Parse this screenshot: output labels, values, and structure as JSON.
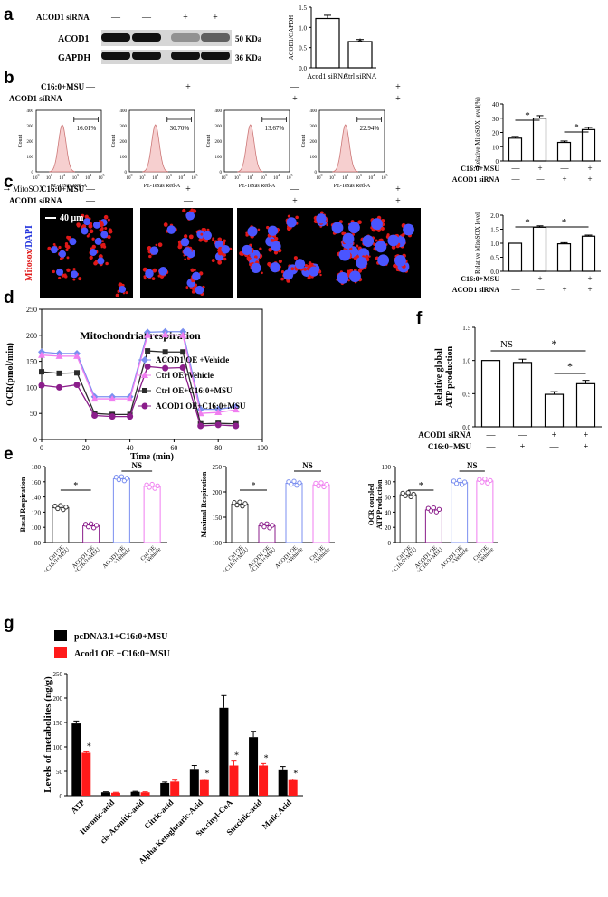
{
  "panels": {
    "a": "a",
    "b": "b",
    "c": "c",
    "d": "d",
    "e": "e",
    "f": "f",
    "g": "g"
  },
  "blot": {
    "siRNA_label": "ACOD1 siRNA",
    "siRNA_signs": [
      "—",
      "—",
      "+",
      "+"
    ],
    "rows": [
      {
        "name": "ACOD1",
        "size": "50 KDa"
      },
      {
        "name": "GAPDH",
        "size": "36 KDa"
      }
    ]
  },
  "treat_labels": {
    "c16": "C16:0+MSU",
    "acod1": "ACOD1 siRNA"
  },
  "signs4": {
    "c16": [
      "—",
      "+",
      "—",
      "+"
    ],
    "acod1": [
      "—",
      "—",
      "+",
      "+"
    ]
  },
  "flow": {
    "pcts": [
      "16.01%",
      "30.70%",
      "13.67%",
      "22.94%"
    ],
    "ylabel": "Count",
    "xlabel": "PE-Texas Red-A",
    "channel": "MitoSOX",
    "yticks": [
      "0",
      "100",
      "200",
      "300",
      "400"
    ],
    "xticks": [
      "0",
      "1",
      "2",
      "3",
      "4",
      "5"
    ]
  },
  "micro": {
    "scale": "40 μm",
    "stain1": "Mitosox",
    "stain2": "DAPI"
  },
  "chart_data": [
    {
      "id": "a",
      "type": "bar",
      "categories": [
        "Acod1 siRNA",
        "Ctrl  siRNA"
      ],
      "values": [
        1.22,
        0.65
      ],
      "errors": [
        0.08,
        0.05
      ],
      "ylabel": "ACOD1/GAPDH",
      "ylim": [
        0,
        1.5
      ],
      "yticks": [
        "0.0",
        "0.5",
        "1.0",
        "1.5"
      ],
      "annotations": [
        "*"
      ]
    },
    {
      "id": "b",
      "type": "bar",
      "ylabel": "Relative MitoSOX level(%)",
      "values": [
        16,
        30,
        13,
        22
      ],
      "errors": [
        1.2,
        1.8,
        1.0,
        1.5
      ],
      "ylim": [
        0,
        40
      ],
      "yticks": [
        "0",
        "10",
        "20",
        "30",
        "40"
      ],
      "annotations": [
        "*",
        "*"
      ]
    },
    {
      "id": "c",
      "type": "bar",
      "ylabel": "Relative MitoSOX level",
      "values": [
        1.0,
        1.57,
        0.98,
        1.25
      ],
      "errors": [
        0,
        0.05,
        0.04,
        0.04
      ],
      "ylim": [
        0,
        2.0
      ],
      "yticks": [
        "0.0",
        "0.5",
        "1.0",
        "1.5",
        "2.0"
      ],
      "annotations": [
        "*",
        "*"
      ]
    },
    {
      "id": "d",
      "type": "line",
      "title": "Mitochondrial respiration",
      "xlabel": "Time (min)",
      "ylabel": "OCR(pmol/min)",
      "xlim": [
        0,
        100
      ],
      "ylim": [
        0,
        250
      ],
      "xticks": [
        "0",
        "20",
        "40",
        "60",
        "80",
        "100"
      ],
      "yticks": [
        "0",
        "50",
        "100",
        "150",
        "200",
        "250"
      ],
      "x": [
        0,
        8,
        16,
        24,
        32,
        40,
        48,
        56,
        64,
        72,
        80,
        88
      ],
      "series": [
        {
          "name": "ACOD1 OE +Vehicle",
          "color": "#7b8ff0",
          "marker": "diamond",
          "values": [
            168,
            165,
            165,
            82,
            82,
            82,
            206,
            207,
            207,
            58,
            58,
            63
          ]
        },
        {
          "name": "Ctrl OE+Vehicle",
          "color": "#f07ef0",
          "marker": "triangle",
          "values": [
            162,
            160,
            160,
            78,
            78,
            78,
            200,
            201,
            200,
            50,
            52,
            57
          ]
        },
        {
          "name": "Ctrl OE+C16:0+MSU",
          "color": "#2b2b2b",
          "marker": "square",
          "values": [
            130,
            127,
            128,
            50,
            48,
            48,
            170,
            168,
            168,
            30,
            31,
            30
          ]
        },
        {
          "name": "ACOD1 OE+C16:0+MSU",
          "color": "#8b1e8b",
          "marker": "circle",
          "values": [
            104,
            100,
            105,
            46,
            44,
            44,
            140,
            137,
            138,
            26,
            28,
            26
          ]
        }
      ]
    },
    {
      "id": "e1",
      "type": "bar",
      "ylabel": "Basal Respiration",
      "ylim": [
        80,
        180
      ],
      "yticks": [
        "80",
        "100",
        "120",
        "140",
        "160",
        "180"
      ],
      "categories": [
        "Ctrl OE +C16:0+MSU",
        "ACOD1 OE +C16:0+MSU",
        "ACOD1 OE +Vehicle",
        "Ctrl OE +Vehicle"
      ],
      "values": [
        126,
        102,
        164,
        154
      ],
      "colors": [
        "#333333",
        "#8b1e8b",
        "#7b8ff0",
        "#f07ef0"
      ],
      "annotations": [
        "*",
        "NS"
      ]
    },
    {
      "id": "e2",
      "type": "bar",
      "ylabel": "Maximal Respiration",
      "ylim": [
        100,
        250
      ],
      "yticks": [
        "100",
        "150",
        "200",
        "250"
      ],
      "categories": [
        "Ctrl OE +C16:0+MSU",
        "ACOD1 OE +C16:0+MSU",
        "ACOD1 OE +Vehicle",
        "Ctrl OE +Vehicle"
      ],
      "values": [
        176,
        133,
        217,
        214
      ],
      "colors": [
        "#333333",
        "#8b1e8b",
        "#7b8ff0",
        "#f07ef0"
      ],
      "annotations": [
        "*",
        "NS"
      ]
    },
    {
      "id": "e3",
      "type": "bar",
      "ylabel": "OCR coupled ATP Production",
      "ylim": [
        0,
        100
      ],
      "yticks": [
        "0",
        "20",
        "40",
        "60",
        "80",
        "100"
      ],
      "categories": [
        "Ctrl OE +C16:0+MSU",
        "ACOD1 OE +C16:0+MSU",
        "ACOD1 OE +Vehicle",
        "Ctrl OE +Vehicle"
      ],
      "values": [
        63,
        43,
        79,
        81
      ],
      "colors": [
        "#333333",
        "#8b1e8b",
        "#7b8ff0",
        "#f07ef0"
      ],
      "annotations": [
        "*",
        "NS"
      ]
    },
    {
      "id": "f",
      "type": "bar",
      "ylabel": "Relative global ATP production",
      "ylim": [
        0,
        1.5
      ],
      "yticks": [
        "0.0",
        "0.5",
        "1.0",
        "1.5"
      ],
      "values": [
        1.0,
        0.97,
        0.49,
        0.65
      ],
      "errors": [
        0,
        0.05,
        0.04,
        0.05
      ],
      "annotations": [
        "NS",
        "*",
        "*"
      ]
    },
    {
      "id": "g",
      "type": "bar",
      "ylabel": "Levels of metabolites (ng/g)",
      "ylim": [
        0,
        250
      ],
      "yticks": [
        "0",
        "50",
        "100",
        "150",
        "200",
        "250"
      ],
      "categories": [
        "ATP",
        "Itaconic-acid",
        "cis-Aconitic-acid",
        "Citric-acid",
        "Alpha-Ketoglutaric-Acid",
        "Succinyl-CoA",
        "Succinic-acid",
        "Malic Acid"
      ],
      "series": [
        {
          "name": "pcDNA3.1+C16:0+MSU",
          "color": "#000000",
          "values": [
            148,
            7,
            8,
            26,
            55,
            180,
            120,
            54
          ],
          "errors": [
            5,
            1,
            1,
            2,
            7,
            25,
            12,
            6
          ]
        },
        {
          "name": "Acod1 OE +C16:0+MSU",
          "color": "#ff1a1a",
          "values": [
            88,
            6,
            7,
            29,
            32,
            62,
            62,
            32
          ],
          "errors": [
            2,
            1,
            1,
            3,
            2,
            9,
            4,
            2
          ]
        }
      ],
      "annotations": [
        "*",
        "*",
        "*",
        "*",
        "*",
        "*"
      ]
    }
  ]
}
